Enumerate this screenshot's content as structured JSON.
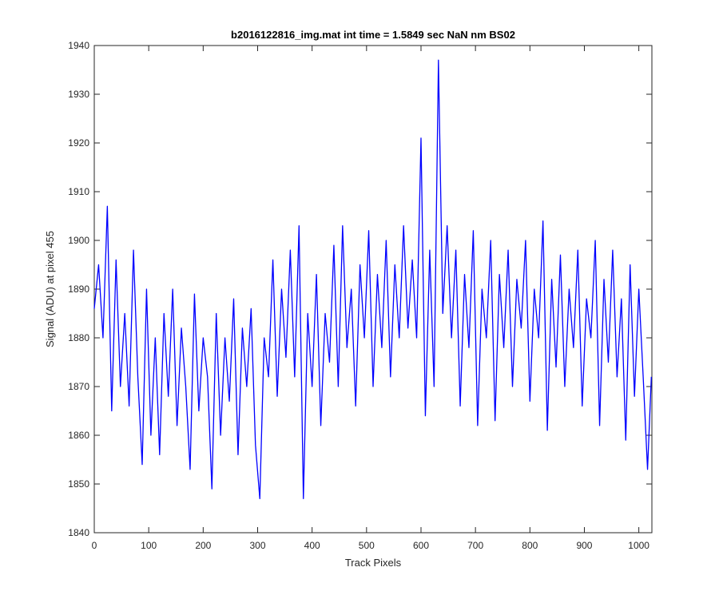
{
  "chart_data": {
    "type": "line",
    "title": "b2016122816_img.mat int time = 1.5849 sec  NaN nm BS02",
    "x_label": "Track Pixels",
    "y_label": "Signal (ADU) at pixel 455",
    "x": [
      0,
      8,
      16,
      24,
      32,
      40,
      48,
      56,
      64,
      72,
      80,
      88,
      96,
      104,
      112,
      120,
      128,
      136,
      144,
      152,
      160,
      168,
      176,
      184,
      192,
      200,
      208,
      216,
      224,
      232,
      240,
      248,
      256,
      264,
      272,
      280,
      288,
      296,
      304,
      312,
      320,
      328,
      336,
      344,
      352,
      360,
      368,
      376,
      384,
      392,
      400,
      408,
      416,
      424,
      432,
      440,
      448,
      456,
      464,
      472,
      480,
      488,
      496,
      504,
      512,
      520,
      528,
      536,
      544,
      552,
      560,
      568,
      576,
      584,
      592,
      600,
      608,
      616,
      624,
      632,
      640,
      648,
      656,
      664,
      672,
      680,
      688,
      696,
      704,
      712,
      720,
      728,
      736,
      744,
      752,
      760,
      768,
      776,
      784,
      792,
      800,
      808,
      816,
      824,
      832,
      840,
      848,
      856,
      864,
      872,
      880,
      888,
      896,
      904,
      912,
      920,
      928,
      936,
      944,
      952,
      960,
      968,
      976,
      984,
      992,
      1000,
      1008,
      1016,
      1023
    ],
    "series": [
      {
        "name": "signal",
        "color": "#0000ff",
        "values": [
          1886,
          1895,
          1880,
          1907,
          1865,
          1896,
          1870,
          1885,
          1866,
          1898,
          1872,
          1854,
          1890,
          1860,
          1880,
          1856,
          1885,
          1868,
          1890,
          1862,
          1882,
          1870,
          1853,
          1889,
          1865,
          1880,
          1872,
          1849,
          1885,
          1860,
          1880,
          1867,
          1888,
          1856,
          1882,
          1870,
          1886,
          1858,
          1847,
          1880,
          1872,
          1896,
          1868,
          1890,
          1876,
          1898,
          1872,
          1903,
          1847,
          1885,
          1870,
          1893,
          1862,
          1885,
          1875,
          1899,
          1870,
          1903,
          1878,
          1890,
          1866,
          1895,
          1880,
          1902,
          1870,
          1893,
          1878,
          1900,
          1872,
          1895,
          1880,
          1903,
          1882,
          1896,
          1880,
          1921,
          1864,
          1898,
          1870,
          1937,
          1885,
          1903,
          1880,
          1898,
          1866,
          1893,
          1878,
          1902,
          1862,
          1890,
          1880,
          1900,
          1863,
          1893,
          1878,
          1898,
          1870,
          1892,
          1882,
          1900,
          1867,
          1890,
          1880,
          1904,
          1861,
          1892,
          1874,
          1897,
          1870,
          1890,
          1878,
          1898,
          1866,
          1888,
          1880,
          1900,
          1862,
          1892,
          1875,
          1898,
          1872,
          1888,
          1859,
          1895,
          1868,
          1890,
          1872,
          1853,
          1872
        ]
      }
    ],
    "xlim": [
      0,
      1024
    ],
    "ylim": [
      1840,
      1940
    ],
    "xticks": [
      0,
      100,
      200,
      300,
      400,
      500,
      600,
      700,
      800,
      900,
      1000
    ],
    "yticks": [
      1840,
      1850,
      1860,
      1870,
      1880,
      1890,
      1900,
      1910,
      1920,
      1930,
      1940
    ],
    "grid": false
  }
}
